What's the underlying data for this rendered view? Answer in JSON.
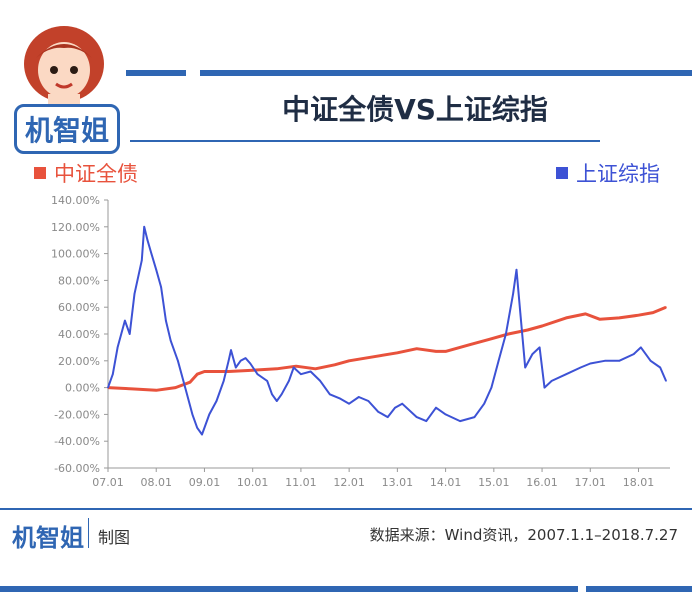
{
  "header": {
    "brand": "机智姐",
    "title": "中证全债VS上证综指"
  },
  "legend": {
    "left": "中证全债",
    "right": "上证综指"
  },
  "colors": {
    "accent": "#2f66b3",
    "series_bond": "#e8523c",
    "series_index": "#3d52d5",
    "axis_text": "#8a8a8a"
  },
  "footer": {
    "brand": "机智姐",
    "made_label": "制图",
    "source": "数据来源：Wind资讯，2007.1.1–2018.7.27"
  },
  "chart_data": {
    "type": "line",
    "y_unit": "%",
    "ylim": [
      -60,
      140
    ],
    "y_ticks": [
      "140.00%",
      "120.00%",
      "100.00%",
      "80.00%",
      "60.00%",
      "40.00%",
      "20.00%",
      "0.00%",
      "-20.00%",
      "-40.00%",
      "-60.00%"
    ],
    "x_ticks": [
      "07.01",
      "08.01",
      "09.01",
      "10.01",
      "11.01",
      "12.01",
      "13.01",
      "14.01",
      "15.01",
      "16.01",
      "17.01",
      "18.01"
    ],
    "x_range": [
      "2007.1.1",
      "2018.7.27"
    ],
    "grid": false,
    "legend_position": "top",
    "series": [
      {
        "name": "中证全债",
        "color": "#e8523c",
        "points": [
          [
            2007.0,
            0
          ],
          [
            2007.5,
            -1
          ],
          [
            2008.0,
            -2
          ],
          [
            2008.4,
            0
          ],
          [
            2008.7,
            4
          ],
          [
            2008.85,
            10
          ],
          [
            2009.0,
            12
          ],
          [
            2009.5,
            12
          ],
          [
            2010.0,
            13
          ],
          [
            2010.5,
            14
          ],
          [
            2010.9,
            16
          ],
          [
            2011.3,
            14
          ],
          [
            2011.7,
            17
          ],
          [
            2012.0,
            20
          ],
          [
            2012.5,
            23
          ],
          [
            2013.0,
            26
          ],
          [
            2013.4,
            29
          ],
          [
            2013.8,
            27
          ],
          [
            2014.0,
            27
          ],
          [
            2014.5,
            32
          ],
          [
            2014.9,
            36
          ],
          [
            2015.3,
            40
          ],
          [
            2015.7,
            43
          ],
          [
            2016.0,
            46
          ],
          [
            2016.5,
            52
          ],
          [
            2016.9,
            55
          ],
          [
            2017.2,
            51
          ],
          [
            2017.6,
            52
          ],
          [
            2018.0,
            54
          ],
          [
            2018.3,
            56
          ],
          [
            2018.57,
            60
          ]
        ]
      },
      {
        "name": "上证综指",
        "color": "#3d52d5",
        "points": [
          [
            2007.0,
            0
          ],
          [
            2007.1,
            10
          ],
          [
            2007.2,
            30
          ],
          [
            2007.35,
            50
          ],
          [
            2007.45,
            40
          ],
          [
            2007.55,
            70
          ],
          [
            2007.7,
            95
          ],
          [
            2007.75,
            120
          ],
          [
            2007.82,
            110
          ],
          [
            2007.9,
            100
          ],
          [
            2008.0,
            88
          ],
          [
            2008.1,
            75
          ],
          [
            2008.2,
            50
          ],
          [
            2008.3,
            35
          ],
          [
            2008.45,
            20
          ],
          [
            2008.6,
            0
          ],
          [
            2008.75,
            -20
          ],
          [
            2008.85,
            -30
          ],
          [
            2008.95,
            -35
          ],
          [
            2009.1,
            -20
          ],
          [
            2009.25,
            -10
          ],
          [
            2009.4,
            5
          ],
          [
            2009.5,
            20
          ],
          [
            2009.55,
            28
          ],
          [
            2009.65,
            15
          ],
          [
            2009.75,
            20
          ],
          [
            2009.85,
            22
          ],
          [
            2009.95,
            18
          ],
          [
            2010.1,
            10
          ],
          [
            2010.3,
            5
          ],
          [
            2010.4,
            -5
          ],
          [
            2010.5,
            -10
          ],
          [
            2010.6,
            -5
          ],
          [
            2010.75,
            5
          ],
          [
            2010.85,
            15
          ],
          [
            2011.0,
            10
          ],
          [
            2011.2,
            12
          ],
          [
            2011.4,
            5
          ],
          [
            2011.6,
            -5
          ],
          [
            2011.8,
            -8
          ],
          [
            2012.0,
            -12
          ],
          [
            2012.2,
            -7
          ],
          [
            2012.4,
            -10
          ],
          [
            2012.6,
            -18
          ],
          [
            2012.8,
            -22
          ],
          [
            2012.95,
            -15
          ],
          [
            2013.1,
            -12
          ],
          [
            2013.4,
            -22
          ],
          [
            2013.6,
            -25
          ],
          [
            2013.8,
            -15
          ],
          [
            2014.0,
            -20
          ],
          [
            2014.3,
            -25
          ],
          [
            2014.6,
            -22
          ],
          [
            2014.8,
            -12
          ],
          [
            2014.95,
            0
          ],
          [
            2015.1,
            20
          ],
          [
            2015.25,
            40
          ],
          [
            2015.4,
            70
          ],
          [
            2015.47,
            88
          ],
          [
            2015.55,
            55
          ],
          [
            2015.65,
            15
          ],
          [
            2015.8,
            25
          ],
          [
            2015.95,
            30
          ],
          [
            2016.05,
            0
          ],
          [
            2016.2,
            5
          ],
          [
            2016.5,
            10
          ],
          [
            2016.8,
            15
          ],
          [
            2017.0,
            18
          ],
          [
            2017.3,
            20
          ],
          [
            2017.6,
            20
          ],
          [
            2017.9,
            25
          ],
          [
            2018.05,
            30
          ],
          [
            2018.25,
            20
          ],
          [
            2018.45,
            15
          ],
          [
            2018.57,
            5
          ]
        ]
      }
    ]
  }
}
